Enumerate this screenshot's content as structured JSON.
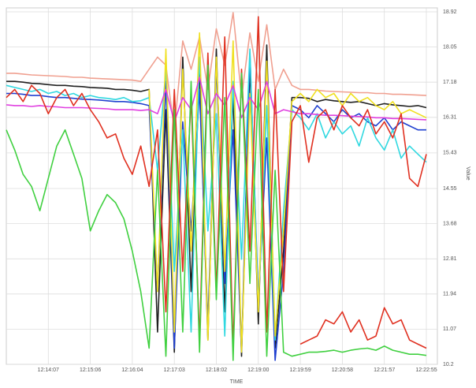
{
  "chart_data": {
    "type": "line",
    "xlabel": "TIME",
    "ylabel": "Value",
    "categories": [
      null,
      null,
      null,
      null,
      null,
      "12:14:07",
      null,
      null,
      null,
      null,
      "12:15:06",
      null,
      null,
      null,
      null,
      "12:16:04",
      null,
      null,
      null,
      null,
      "12:17:03",
      null,
      null,
      null,
      null,
      "12:18:02",
      null,
      null,
      null,
      null,
      "12:19:00",
      null,
      null,
      null,
      null,
      "12:19:59",
      null,
      null,
      null,
      null,
      "12:20:58",
      null,
      null,
      null,
      null,
      "12:21:57",
      null,
      null,
      null,
      null,
      "12:22:55"
    ],
    "ylim": [
      10.2,
      18.92
    ],
    "yticks": [
      10.2,
      11.07,
      11.94,
      12.81,
      13.68,
      14.55,
      15.43,
      16.31,
      17.18,
      18.05,
      18.92
    ],
    "grid": true,
    "series": [
      {
        "color": "#f0a090",
        "values": [
          17.4,
          17.4,
          17.38,
          17.36,
          17.35,
          17.34,
          17.33,
          17.32,
          17.3,
          17.3,
          17.28,
          17.27,
          17.26,
          17.25,
          17.24,
          17.23,
          17.2,
          17.5,
          17.8,
          17.6,
          16.0,
          18.2,
          17.5,
          18.3,
          17.0,
          18.5,
          17.6,
          18.9,
          16.8,
          18.4,
          17.2,
          18.6,
          17.0,
          17.5,
          17.1,
          17.0,
          17.0,
          16.98,
          16.96,
          16.95,
          16.94,
          16.93,
          16.92,
          16.92,
          16.9,
          16.9,
          16.88,
          16.88,
          16.87,
          16.86,
          16.85
        ]
      },
      {
        "color": "#202020",
        "values": [
          17.2,
          17.2,
          17.18,
          17.15,
          17.14,
          17.12,
          17.1,
          17.1,
          17.08,
          17.07,
          17.05,
          17.04,
          17.03,
          17.0,
          17.0,
          16.98,
          16.95,
          17.0,
          11.0,
          16.5,
          10.5,
          17.8,
          12.0,
          17.5,
          10.8,
          18.0,
          11.5,
          16.9,
          10.4,
          17.6,
          11.2,
          18.1,
          10.6,
          13.0,
          16.8,
          16.8,
          16.78,
          16.7,
          16.75,
          16.72,
          16.7,
          16.68,
          16.7,
          16.65,
          16.6,
          16.65,
          16.62,
          16.6,
          16.58,
          16.6,
          16.55
        ]
      },
      {
        "color": "#2040d0",
        "values": [
          16.9,
          16.9,
          16.88,
          16.85,
          16.85,
          16.82,
          16.8,
          16.8,
          16.78,
          16.76,
          16.75,
          16.74,
          16.72,
          16.7,
          16.7,
          16.68,
          16.65,
          16.6,
          12.0,
          17.2,
          10.6,
          16.2,
          13.5,
          17.0,
          11.2,
          17.6,
          12.2,
          16.0,
          10.5,
          17.9,
          11.8,
          15.8,
          10.3,
          12.5,
          16.6,
          16.5,
          16.3,
          16.6,
          16.4,
          16.2,
          16.5,
          16.3,
          16.4,
          16.2,
          16.1,
          16.3,
          16.0,
          16.2,
          16.1,
          16.0,
          16.0
        ]
      },
      {
        "color": "#30d8e0",
        "values": [
          17.1,
          17.05,
          17.0,
          16.95,
          17.0,
          16.9,
          16.95,
          16.85,
          16.9,
          16.8,
          16.85,
          16.8,
          16.78,
          16.75,
          16.8,
          16.7,
          16.72,
          16.8,
          15.0,
          17.5,
          12.5,
          16.0,
          11.0,
          17.8,
          13.5,
          16.4,
          10.9,
          17.2,
          12.8,
          18.0,
          11.6,
          16.6,
          10.8,
          14.0,
          16.5,
          16.3,
          16.0,
          16.4,
          15.8,
          16.2,
          15.9,
          16.1,
          15.6,
          16.3,
          15.8,
          15.5,
          16.0,
          15.3,
          15.6,
          15.4,
          15.2
        ]
      },
      {
        "color": "#f0e020",
        "values": [
          null,
          null,
          null,
          null,
          null,
          null,
          null,
          null,
          null,
          null,
          null,
          null,
          null,
          null,
          null,
          null,
          null,
          17.0,
          12.0,
          18.0,
          11.0,
          17.5,
          13.0,
          18.4,
          10.8,
          17.8,
          12.5,
          18.2,
          10.5,
          16.9,
          11.5,
          17.7,
          10.9,
          13.5,
          16.7,
          16.9,
          16.7,
          17.0,
          16.8,
          16.9,
          16.6,
          16.9,
          16.7,
          16.8,
          16.6,
          16.5,
          16.7,
          16.4,
          16.5,
          16.4,
          16.3
        ]
      },
      {
        "color": "#e040e0",
        "values": [
          16.62,
          16.6,
          16.6,
          16.58,
          16.6,
          16.58,
          16.57,
          16.55,
          16.55,
          16.55,
          16.54,
          16.53,
          16.52,
          16.5,
          16.5,
          16.5,
          16.48,
          16.5,
          16.4,
          17.0,
          16.2,
          16.8,
          16.5,
          17.3,
          16.4,
          16.9,
          16.6,
          17.1,
          16.3,
          16.8,
          16.5,
          17.2,
          16.4,
          16.5,
          16.45,
          16.4,
          16.4,
          16.38,
          16.36,
          16.36,
          16.35,
          16.34,
          16.33,
          16.32,
          16.3,
          16.3,
          16.28,
          16.28,
          16.27,
          16.26,
          16.25
        ]
      },
      {
        "color": "#e03020",
        "values": [
          16.8,
          17.0,
          16.7,
          17.1,
          16.9,
          16.4,
          16.8,
          17.0,
          16.6,
          16.9,
          16.5,
          16.2,
          15.8,
          15.9,
          15.3,
          14.9,
          15.6,
          14.6,
          16.0,
          11.5,
          17.0,
          12.5,
          16.8,
          10.8,
          17.9,
          12.0,
          18.3,
          10.6,
          17.5,
          13.0,
          18.8,
          11.0,
          17.0,
          12.0,
          16.2,
          16.6,
          15.2,
          16.3,
          16.5,
          16.0,
          16.6,
          16.3,
          16.1,
          16.5,
          15.9,
          16.2,
          15.8,
          16.4,
          14.8,
          14.6,
          15.4
        ]
      },
      {
        "color": "#e03020",
        "values": [
          null,
          null,
          null,
          null,
          null,
          null,
          null,
          null,
          null,
          null,
          null,
          null,
          null,
          null,
          null,
          null,
          null,
          null,
          null,
          null,
          null,
          null,
          null,
          null,
          null,
          null,
          null,
          null,
          null,
          null,
          null,
          null,
          null,
          null,
          null,
          10.7,
          10.8,
          10.9,
          11.3,
          11.2,
          11.5,
          11.0,
          11.3,
          10.8,
          10.9,
          11.6,
          11.2,
          11.3,
          10.8,
          10.7,
          10.6
        ]
      },
      {
        "color": "#40d040",
        "values": [
          16.0,
          15.5,
          14.9,
          14.6,
          14.0,
          14.8,
          15.6,
          16.0,
          15.4,
          14.8,
          13.5,
          14.0,
          14.4,
          14.2,
          13.8,
          13.0,
          12.0,
          10.6,
          15.0,
          10.4,
          16.5,
          11.0,
          17.2,
          10.5,
          17.6,
          11.8,
          16.8,
          10.3,
          17.4,
          12.2,
          17.0,
          10.4,
          15.0,
          10.5,
          10.4,
          10.45,
          10.5,
          10.5,
          10.52,
          10.55,
          10.5,
          10.55,
          10.58,
          10.6,
          10.55,
          10.65,
          10.55,
          10.5,
          10.45,
          10.45,
          10.42
        ]
      }
    ]
  }
}
